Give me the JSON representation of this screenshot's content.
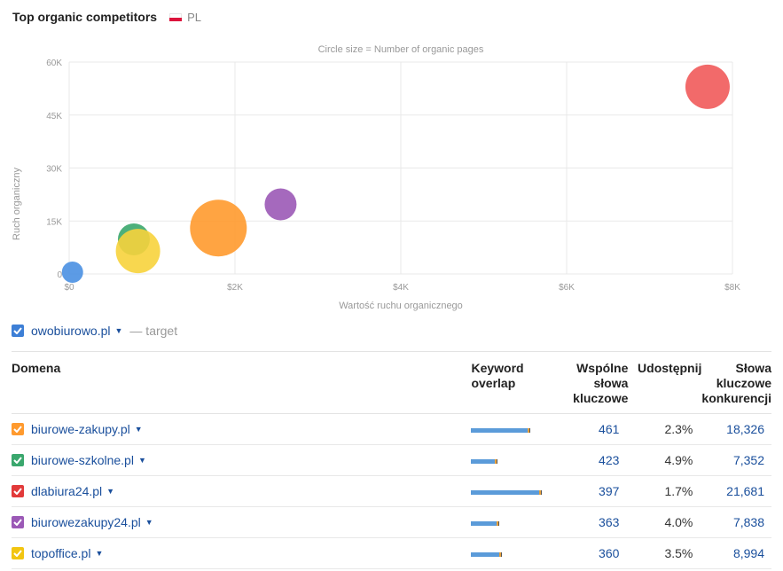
{
  "header": {
    "title": "Top organic competitors",
    "country": "PL"
  },
  "chart_data": {
    "type": "scatter",
    "note_text": "Circle size = Number of organic pages",
    "xlabel": "Wartość ruchu organicznego",
    "ylabel": "Ruch organiczny",
    "xlim": [
      0,
      8000
    ],
    "ylim": [
      0,
      60000
    ],
    "x_ticks": [
      "$0",
      "$2K",
      "$4K",
      "$6K",
      "$8K"
    ],
    "y_ticks": [
      "0",
      "15K",
      "30K",
      "45K",
      "60K"
    ],
    "grid": true,
    "points": [
      {
        "domain": "owobiurowo.pl",
        "x": 40,
        "y": 500,
        "size": "small",
        "color": "#4a90e2"
      },
      {
        "domain": "biurowe-szkolne.pl",
        "x": 780,
        "y": 9800,
        "size": "medium",
        "color": "#3aa76d"
      },
      {
        "domain": "topoffice.pl",
        "x": 830,
        "y": 6500,
        "size": "large",
        "color": "#f7d33c"
      },
      {
        "domain": "biurowe-zakupy.pl",
        "x": 1800,
        "y": 13000,
        "size": "xlarge",
        "color": "#ff9a2e"
      },
      {
        "domain": "biurowezakupy24.pl",
        "x": 2550,
        "y": 19700,
        "size": "medium",
        "color": "#9b59b6"
      },
      {
        "domain": "dlabiura24.pl",
        "x": 7700,
        "y": 53000,
        "size": "large",
        "color": "#f15a5a"
      }
    ]
  },
  "target": {
    "domain": "owobiurowo.pl",
    "label": "— target",
    "color": "#3d7fd6"
  },
  "table": {
    "headers": {
      "domain": "Domena",
      "overlap_line1": "Keyword",
      "overlap_line2": "overlap",
      "common_line1": "Wspólne",
      "common_line2": "słowa",
      "common_line3": "kluczowe",
      "share": "Udostępnij",
      "comp_line1": "Słowa",
      "comp_line2": "kluczowe",
      "comp_line3": "konkurencji"
    },
    "rows": [
      {
        "domain": "biurowe-zakupy.pl",
        "color": "#ff9a2e",
        "overlap": 0.8,
        "common": "461",
        "share": "2.3%",
        "competitor": "18,326"
      },
      {
        "domain": "biurowe-szkolne.pl",
        "color": "#3aa76d",
        "overlap": 0.36,
        "common": "423",
        "share": "4.9%",
        "competitor": "7,352"
      },
      {
        "domain": "dlabiura24.pl",
        "color": "#e23a3a",
        "overlap": 0.95,
        "common": "397",
        "share": "1.7%",
        "competitor": "21,681"
      },
      {
        "domain": "biurowezakupy24.pl",
        "color": "#9b59b6",
        "overlap": 0.38,
        "common": "363",
        "share": "4.0%",
        "competitor": "7,838"
      },
      {
        "domain": "topoffice.pl",
        "color": "#f2c511",
        "overlap": 0.42,
        "common": "360",
        "share": "3.5%",
        "competitor": "8,994"
      }
    ]
  }
}
